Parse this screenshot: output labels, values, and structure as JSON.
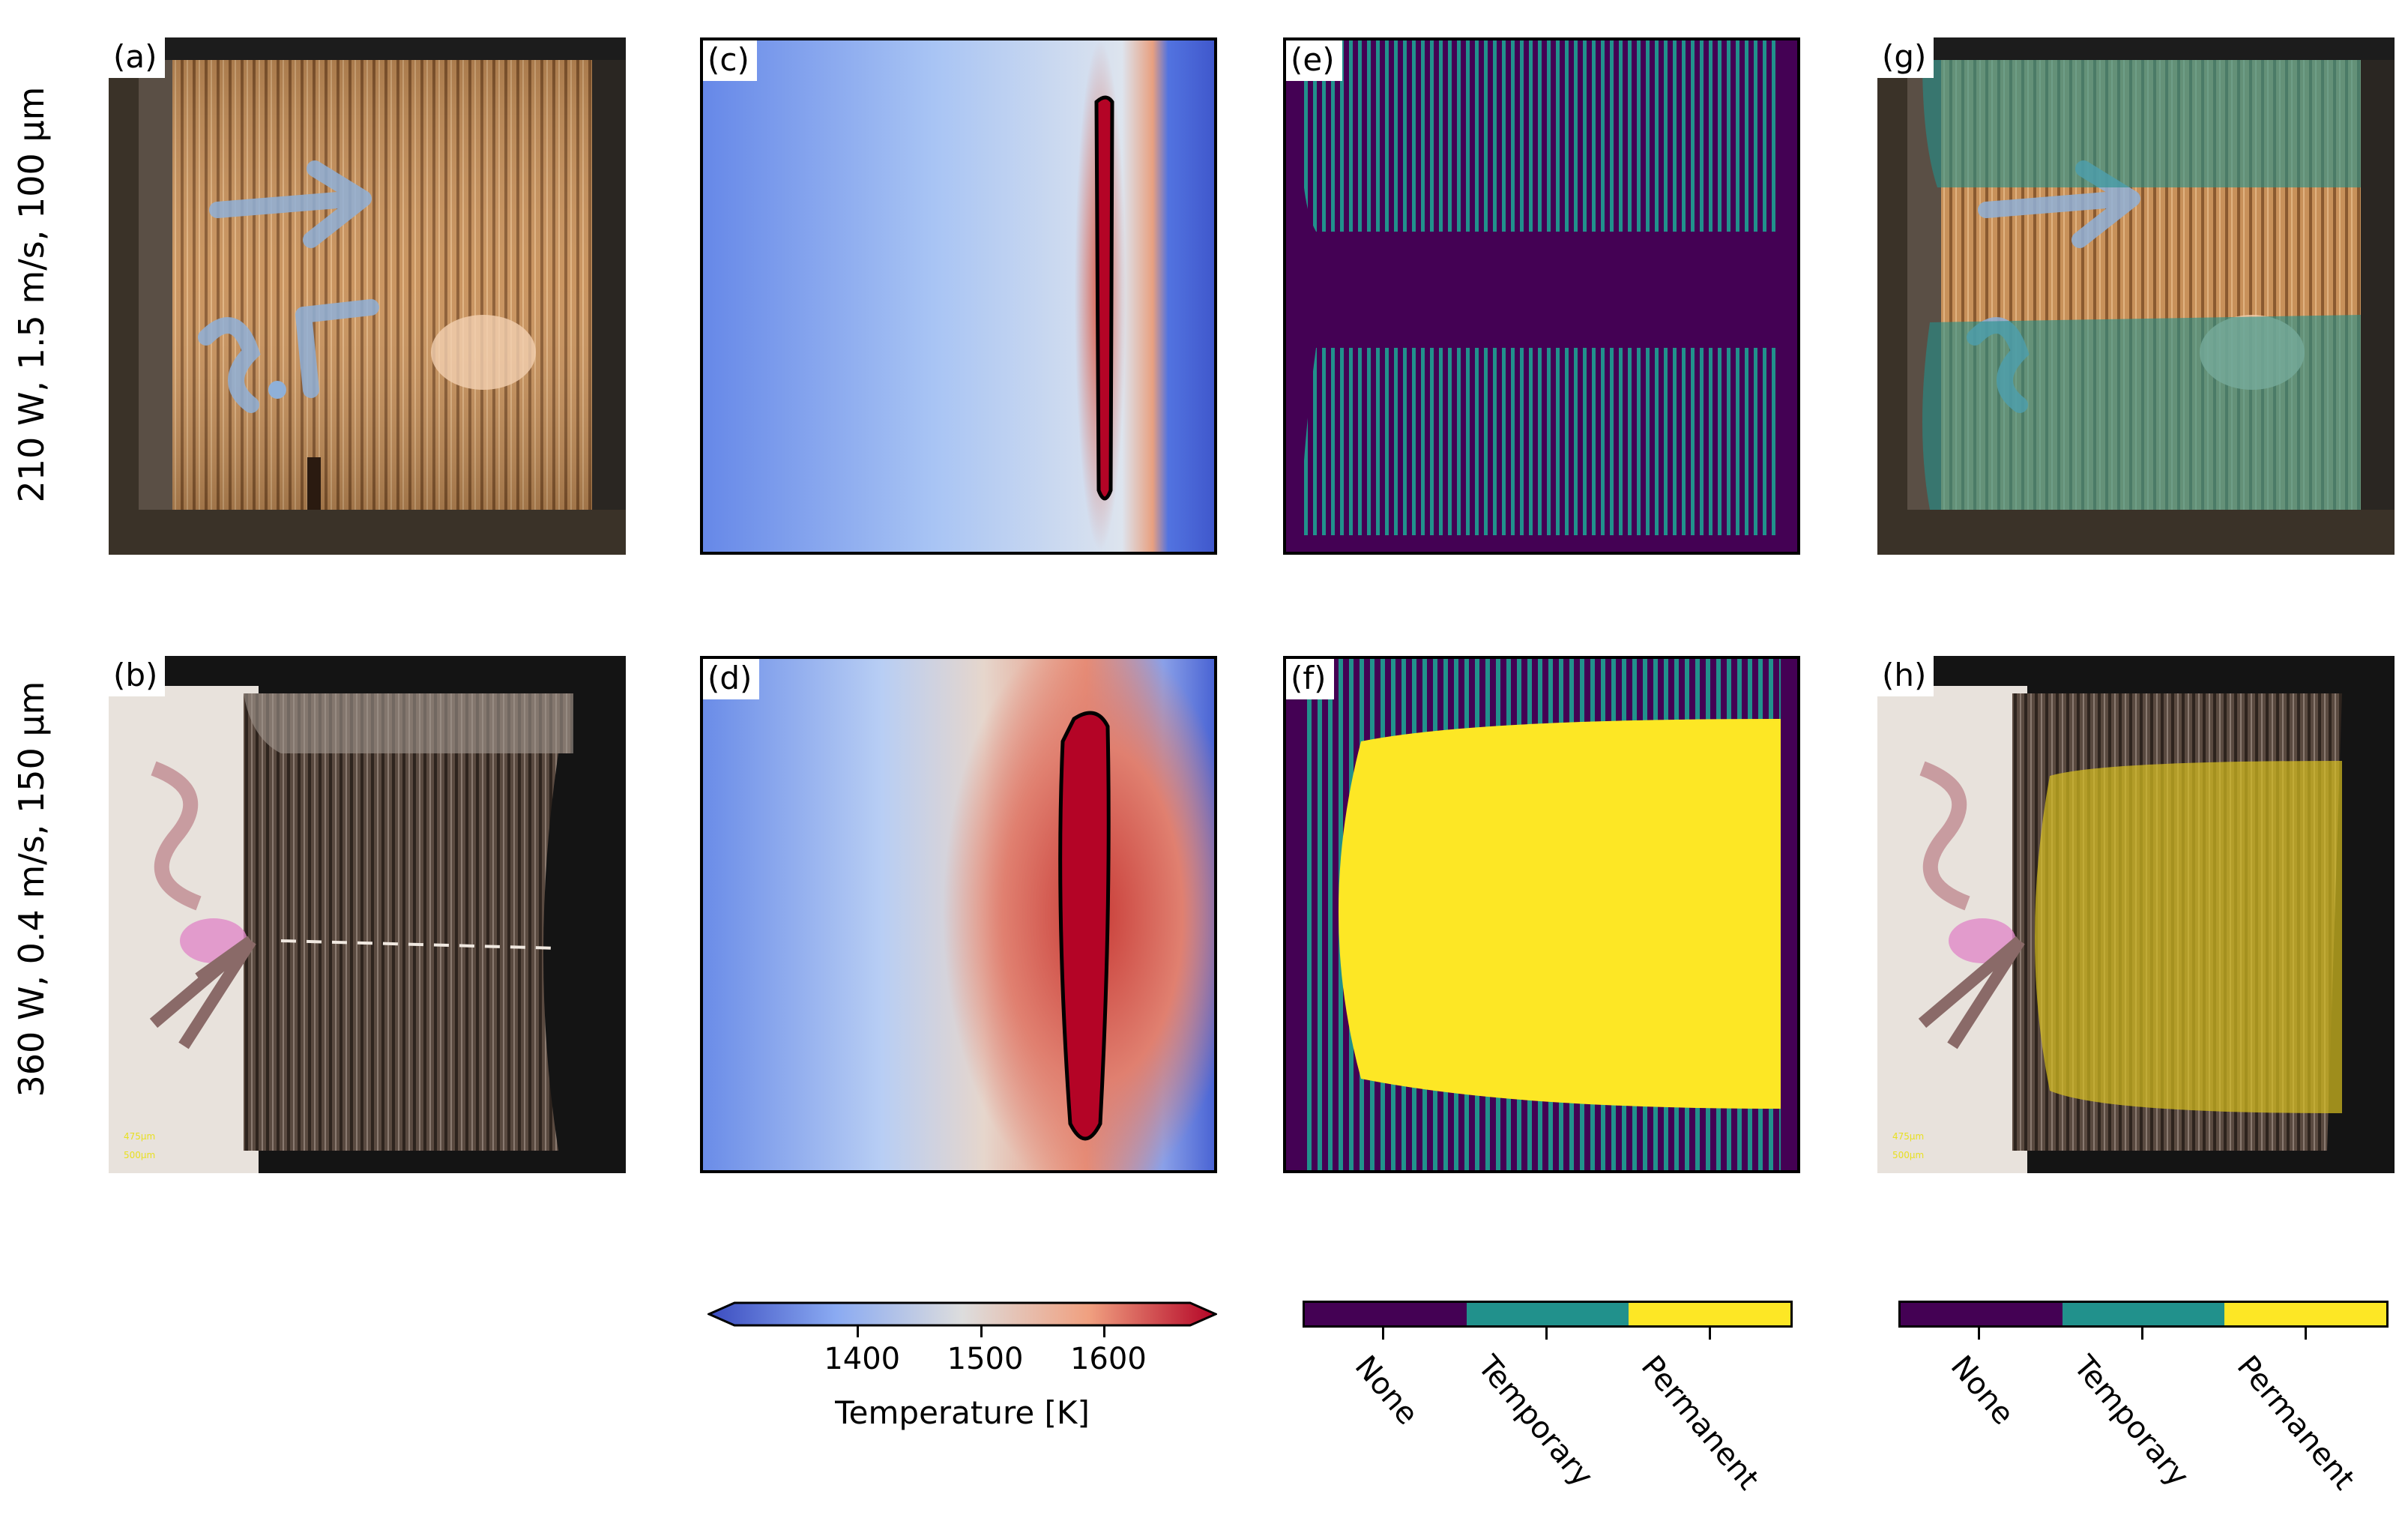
{
  "rows": [
    {
      "label": "210 W, 1.5 m/s, 100 μm"
    },
    {
      "label": "360 W, 0.4 m/s, 150 μm"
    }
  ],
  "panels": {
    "a": "(a)",
    "b": "(b)",
    "c": "(c)",
    "d": "(d)",
    "e": "(e)",
    "f": "(f)",
    "g": "(g)",
    "h": "(h)"
  },
  "photo_text": {
    "a_marking": "3.5",
    "b_scale1": "475μm",
    "b_scale2": "500μm",
    "h_scale1": "475μm",
    "h_scale2": "500μm"
  },
  "temperature_colorbar": {
    "ticks": [
      "1400",
      "1500",
      "1600"
    ],
    "tick_values": [
      1400,
      1500,
      1600
    ],
    "range": [
      1300,
      1670
    ],
    "label": "Temperature [K]",
    "colors": {
      "low": "#3b4cc0",
      "mid": "#dddddd",
      "high": "#b40426"
    }
  },
  "category_colorbars": [
    {
      "categories": [
        "None",
        "Temporary",
        "Permanent"
      ],
      "colors": [
        "#440154",
        "#21918c",
        "#fde725"
      ]
    },
    {
      "categories": [
        "None",
        "Temporary",
        "Permanent"
      ],
      "colors": [
        "#440154",
        "#21918c",
        "#fde725"
      ]
    }
  ]
}
